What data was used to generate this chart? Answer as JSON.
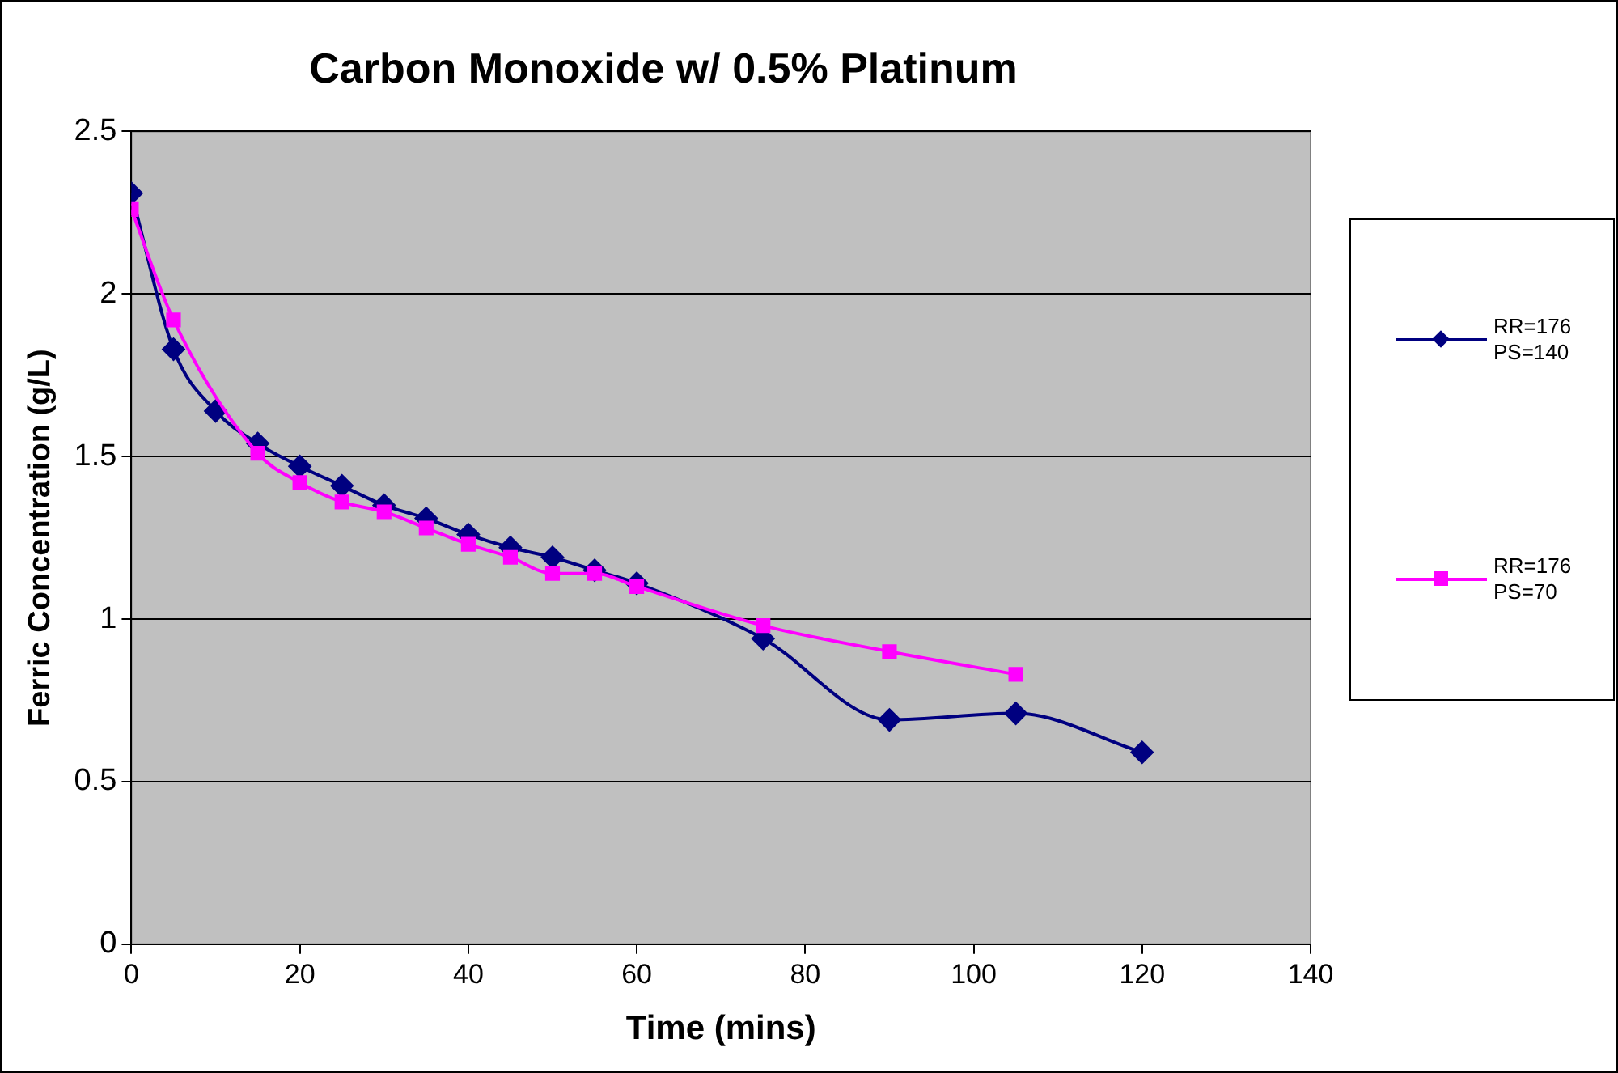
{
  "chart_data": {
    "type": "line",
    "title": "Carbon Monoxide w/ 0.5% Platinum",
    "xlabel": "Time (mins)",
    "ylabel": "Ferric Concentration (g/L)",
    "xlim": [
      0,
      140
    ],
    "xticks": [
      0,
      20,
      40,
      60,
      80,
      100,
      120,
      140
    ],
    "ylim": [
      0,
      2.5
    ],
    "yticks": [
      0,
      0.5,
      1,
      1.5,
      2,
      2.5
    ],
    "grid": "y",
    "legend": "right",
    "series": [
      {
        "name": "RR=176 PS=140",
        "color": "#000080",
        "marker": "diamond",
        "x": [
          0,
          5,
          10,
          15,
          20,
          25,
          30,
          35,
          40,
          45,
          50,
          55,
          60,
          75,
          90,
          105,
          120
        ],
        "values": [
          2.31,
          1.83,
          1.64,
          1.54,
          1.47,
          1.41,
          1.35,
          1.31,
          1.26,
          1.22,
          1.19,
          1.15,
          1.11,
          0.94,
          0.69,
          0.71,
          0.59
        ]
      },
      {
        "name": "RR=176 PS=70",
        "color": "#ff00ff",
        "marker": "square",
        "x": [
          0,
          5,
          15,
          20,
          25,
          30,
          35,
          40,
          45,
          50,
          55,
          60,
          75,
          90,
          105
        ],
        "values": [
          2.26,
          1.92,
          1.51,
          1.42,
          1.36,
          1.33,
          1.28,
          1.23,
          1.19,
          1.14,
          1.14,
          1.1,
          0.98,
          0.9,
          0.83
        ]
      }
    ]
  }
}
